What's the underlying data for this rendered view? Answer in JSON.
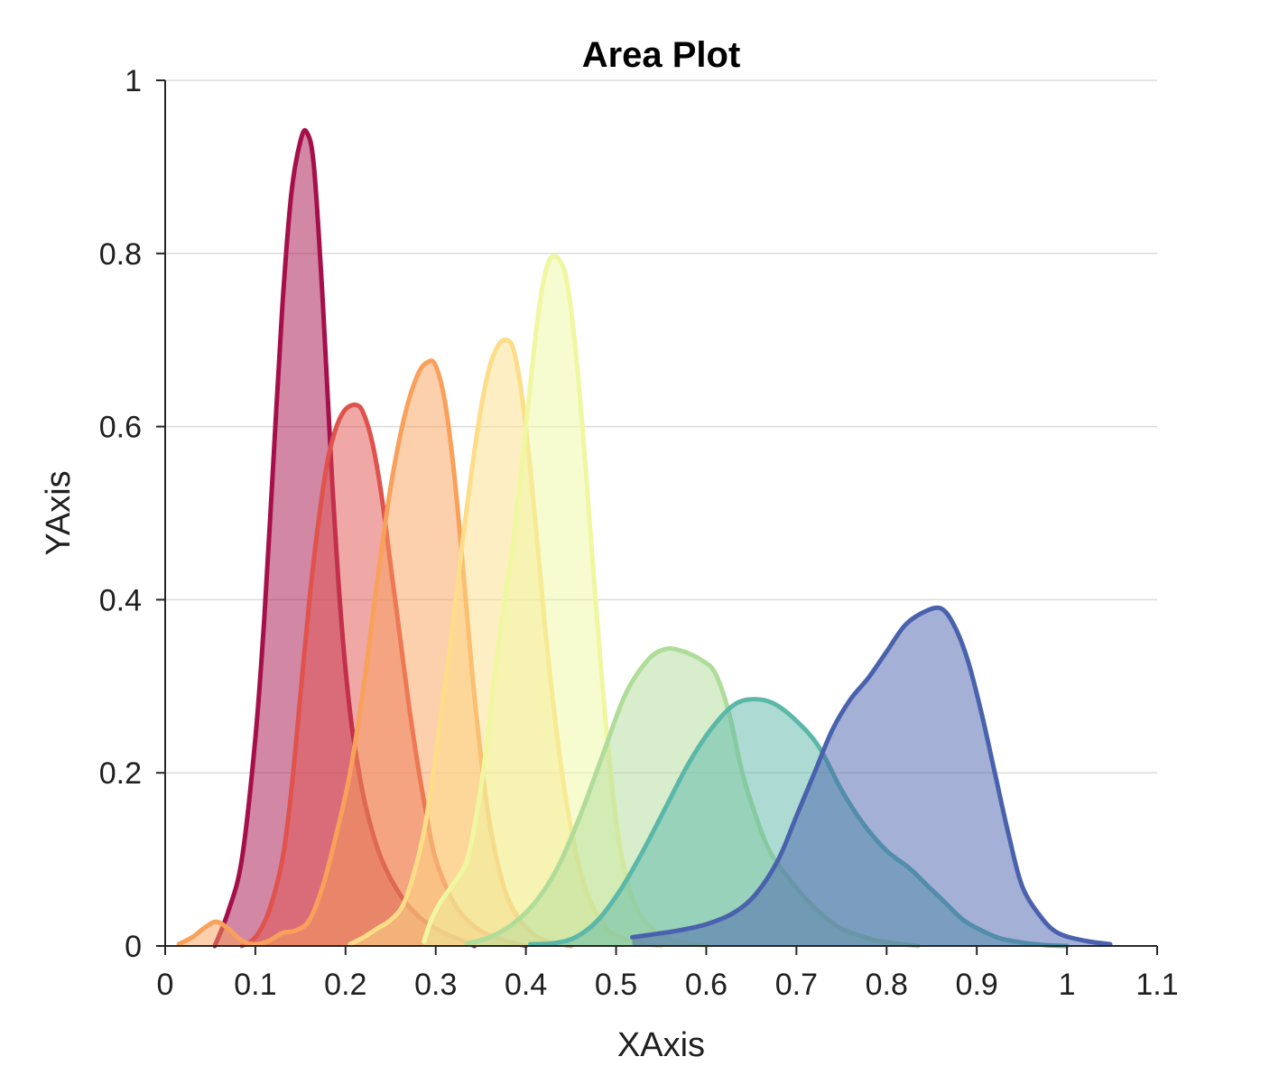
{
  "chart_data": {
    "type": "area",
    "title": "Area Plot",
    "xlabel": "XAxis",
    "ylabel": "YAxis",
    "xlim": [
      0,
      1.1
    ],
    "ylim": [
      0,
      1
    ],
    "xticks": [
      0,
      0.1,
      0.2,
      0.3,
      0.4,
      0.5,
      0.6,
      0.7,
      0.8,
      0.9,
      1,
      1.1
    ],
    "xtick_labels": [
      "0",
      "0.1",
      "0.2",
      "0.3",
      "0.4",
      "0.5",
      "0.6",
      "0.7",
      "0.8",
      "0.9",
      "1",
      "1.1"
    ],
    "yticks": [
      0,
      0.2,
      0.4,
      0.6,
      0.8,
      1
    ],
    "ytick_labels": [
      "0",
      "0.2",
      "0.4",
      "0.6",
      "0.8",
      "1"
    ],
    "grid": "horizontal",
    "legend": "none",
    "series": [
      {
        "color": "#a50f4a",
        "x": [
          0.055,
          0.07,
          0.085,
          0.1,
          0.11,
          0.12,
          0.13,
          0.14,
          0.15,
          0.157,
          0.165,
          0.175,
          0.185,
          0.195,
          0.205,
          0.215,
          0.225,
          0.24,
          0.26,
          0.28,
          0.3,
          0.32,
          0.343
        ],
        "y": [
          0.0,
          0.04,
          0.1,
          0.24,
          0.38,
          0.56,
          0.74,
          0.87,
          0.93,
          0.94,
          0.9,
          0.74,
          0.54,
          0.38,
          0.27,
          0.2,
          0.15,
          0.1,
          0.06,
          0.035,
          0.02,
          0.01,
          0.0
        ]
      },
      {
        "color": "#e0524c",
        "x": [
          0.085,
          0.1,
          0.115,
          0.13,
          0.14,
          0.15,
          0.16,
          0.17,
          0.18,
          0.19,
          0.2,
          0.212,
          0.22,
          0.23,
          0.24,
          0.25,
          0.26,
          0.27,
          0.28,
          0.29,
          0.3,
          0.32,
          0.34,
          0.36,
          0.38,
          0.4
        ],
        "y": [
          0.0,
          0.01,
          0.04,
          0.1,
          0.18,
          0.29,
          0.4,
          0.49,
          0.56,
          0.6,
          0.62,
          0.625,
          0.615,
          0.58,
          0.52,
          0.44,
          0.36,
          0.28,
          0.21,
          0.15,
          0.1,
          0.05,
          0.025,
          0.012,
          0.005,
          0.0
        ]
      },
      {
        "color": "#f9a05b",
        "x": [
          0.015,
          0.03,
          0.045,
          0.057,
          0.07,
          0.085,
          0.1,
          0.115,
          0.13,
          0.145,
          0.16,
          0.175,
          0.19,
          0.205,
          0.22,
          0.235,
          0.25,
          0.265,
          0.28,
          0.292,
          0.3,
          0.31,
          0.32,
          0.33,
          0.34,
          0.35,
          0.36,
          0.375,
          0.39,
          0.41,
          0.43,
          0.45
        ],
        "y": [
          0.002,
          0.01,
          0.022,
          0.028,
          0.02,
          0.006,
          0.002,
          0.006,
          0.015,
          0.018,
          0.03,
          0.07,
          0.13,
          0.2,
          0.3,
          0.42,
          0.53,
          0.61,
          0.66,
          0.675,
          0.67,
          0.63,
          0.55,
          0.44,
          0.32,
          0.22,
          0.14,
          0.07,
          0.035,
          0.012,
          0.004,
          0.0
        ]
      },
      {
        "color": "#fedd88",
        "x": [
          0.205,
          0.22,
          0.235,
          0.25,
          0.265,
          0.28,
          0.29,
          0.3,
          0.31,
          0.32,
          0.33,
          0.34,
          0.35,
          0.36,
          0.37,
          0.378,
          0.386,
          0.395,
          0.405,
          0.415,
          0.425,
          0.44,
          0.455,
          0.47,
          0.49,
          0.51,
          0.53,
          0.55
        ],
        "y": [
          0.002,
          0.01,
          0.02,
          0.03,
          0.05,
          0.1,
          0.15,
          0.22,
          0.3,
          0.38,
          0.47,
          0.55,
          0.62,
          0.67,
          0.695,
          0.7,
          0.69,
          0.64,
          0.55,
          0.44,
          0.33,
          0.2,
          0.11,
          0.055,
          0.02,
          0.008,
          0.003,
          0.0
        ]
      },
      {
        "color": "#f0f7a1",
        "x": [
          0.287,
          0.295,
          0.305,
          0.315,
          0.325,
          0.335,
          0.345,
          0.355,
          0.365,
          0.375,
          0.385,
          0.395,
          0.405,
          0.415,
          0.425,
          0.435,
          0.445,
          0.455,
          0.465,
          0.475,
          0.485,
          0.495,
          0.505,
          0.52,
          0.54,
          0.56,
          0.58,
          0.6
        ],
        "y": [
          0.005,
          0.03,
          0.05,
          0.065,
          0.08,
          0.1,
          0.15,
          0.22,
          0.31,
          0.39,
          0.46,
          0.55,
          0.65,
          0.74,
          0.79,
          0.795,
          0.77,
          0.69,
          0.57,
          0.43,
          0.3,
          0.19,
          0.11,
          0.05,
          0.02,
          0.008,
          0.003,
          0.0
        ]
      },
      {
        "color": "#b0dc9a",
        "x": [
          0.335,
          0.36,
          0.385,
          0.41,
          0.435,
          0.46,
          0.485,
          0.51,
          0.535,
          0.555,
          0.575,
          0.595,
          0.61,
          0.625,
          0.64,
          0.655,
          0.67,
          0.69,
          0.71,
          0.73,
          0.75,
          0.77,
          0.79,
          0.81,
          0.835
        ],
        "y": [
          0.003,
          0.01,
          0.025,
          0.05,
          0.09,
          0.15,
          0.22,
          0.29,
          0.33,
          0.343,
          0.34,
          0.33,
          0.315,
          0.27,
          0.2,
          0.15,
          0.11,
          0.08,
          0.055,
          0.035,
          0.02,
          0.012,
          0.006,
          0.003,
          0.0
        ]
      },
      {
        "color": "#5bb8a8",
        "x": [
          0.405,
          0.43,
          0.455,
          0.48,
          0.505,
          0.53,
          0.555,
          0.58,
          0.605,
          0.63,
          0.652,
          0.675,
          0.7,
          0.725,
          0.75,
          0.775,
          0.8,
          0.825,
          0.845,
          0.865,
          0.885,
          0.905,
          0.925,
          0.95,
          0.975,
          1.0
        ],
        "y": [
          0.002,
          0.003,
          0.01,
          0.03,
          0.065,
          0.11,
          0.16,
          0.21,
          0.25,
          0.278,
          0.285,
          0.28,
          0.26,
          0.23,
          0.18,
          0.14,
          0.11,
          0.09,
          0.07,
          0.05,
          0.03,
          0.018,
          0.009,
          0.004,
          0.001,
          0.0
        ]
      },
      {
        "color": "#4a62ad",
        "x": [
          0.518,
          0.545,
          0.57,
          0.6,
          0.63,
          0.655,
          0.68,
          0.7,
          0.72,
          0.74,
          0.76,
          0.78,
          0.8,
          0.82,
          0.84,
          0.86,
          0.875,
          0.89,
          0.905,
          0.92,
          0.935,
          0.95,
          0.97,
          0.99,
          1.02,
          1.048
        ],
        "y": [
          0.01,
          0.014,
          0.018,
          0.025,
          0.038,
          0.06,
          0.1,
          0.15,
          0.2,
          0.25,
          0.285,
          0.31,
          0.34,
          0.37,
          0.385,
          0.39,
          0.37,
          0.33,
          0.27,
          0.2,
          0.13,
          0.07,
          0.035,
          0.015,
          0.006,
          0.002
        ]
      }
    ]
  }
}
